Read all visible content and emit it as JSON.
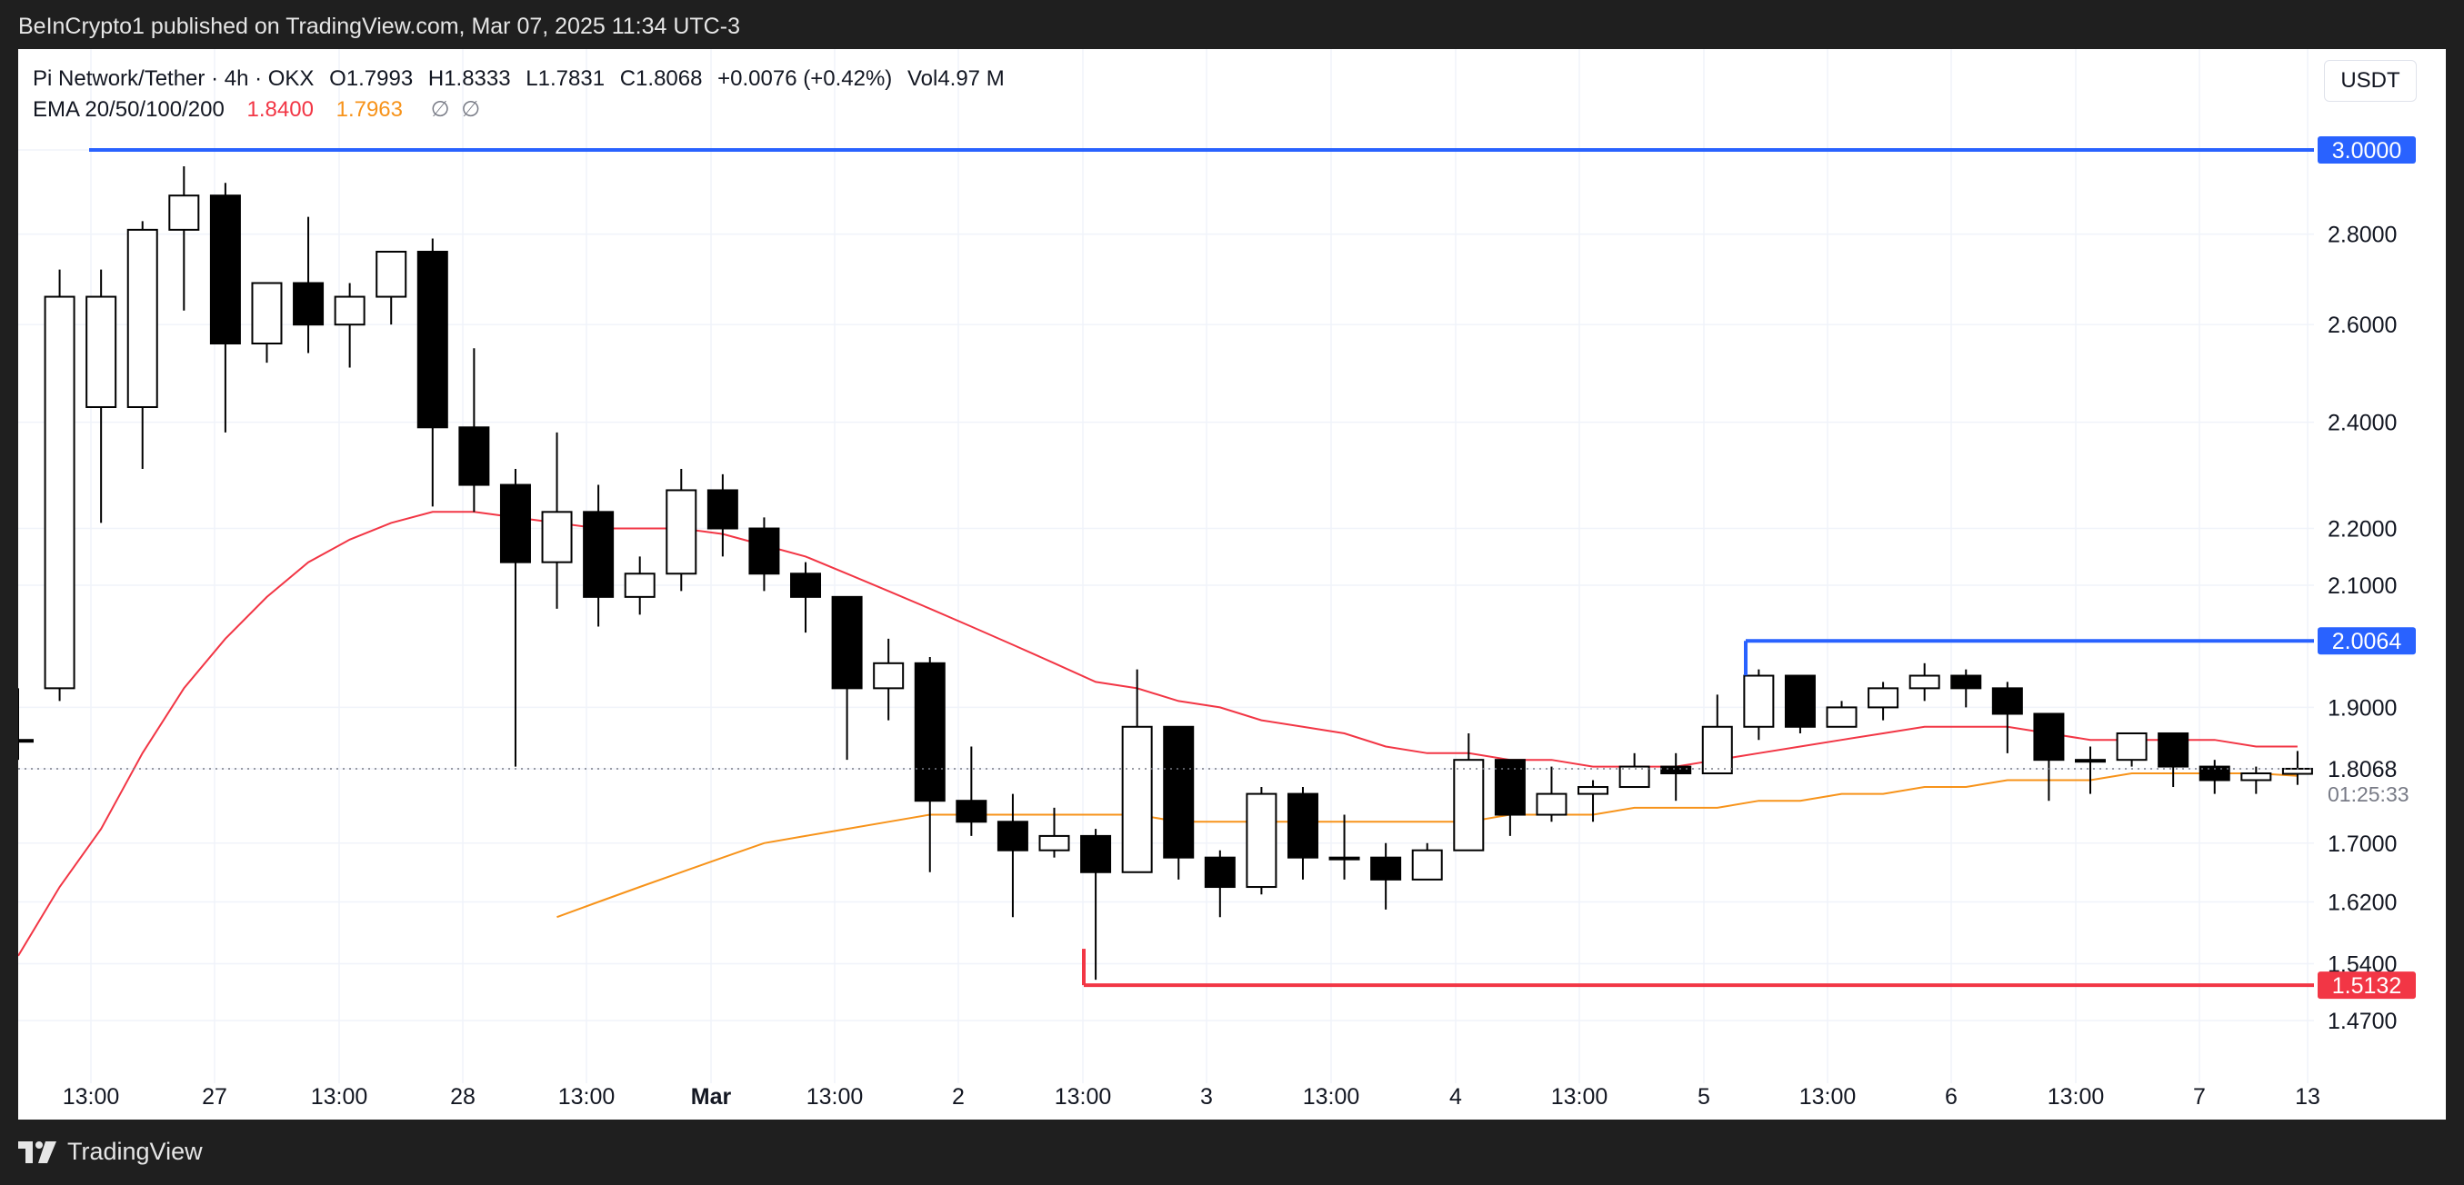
{
  "header": {
    "published": "BeInCrypto1 published on TradingView.com, Mar 07, 2025 11:34 UTC-3"
  },
  "legend": {
    "symbol": "Pi Network/Tether · 4h · OKX",
    "open": "O1.7993",
    "high": "H1.8333",
    "low": "L1.7831",
    "close": "C1.8068",
    "change": "+0.0076 (+0.42%)",
    "volume": "Vol4.97 M",
    "ema_label": "EMA 20/50/100/200",
    "ema20": "1.8400",
    "ema50": "1.7963",
    "ema_na1": "∅",
    "ema_na2": "∅"
  },
  "currency_button": "USDT",
  "footer": {
    "brand": "TradingView"
  },
  "colors": {
    "up": "#ffffff",
    "down": "#000000",
    "ema20": "#f23645",
    "ema50": "#f7931a",
    "resistance": "#2962ff",
    "support": "#f23645"
  },
  "chart_data": {
    "type": "candlestick",
    "timeframe": "4h",
    "price_scale": "log",
    "ylim": [
      1.44,
      3.06
    ],
    "grid": true,
    "x_ticks": [
      "13:00",
      "27",
      "13:00",
      "28",
      "13:00",
      "Mar",
      "13:00",
      "2",
      "13:00",
      "3",
      "13:00",
      "4",
      "13:00",
      "5",
      "13:00",
      "6",
      "13:00",
      "7",
      "13"
    ],
    "y_ticks": [
      "3.0000",
      "2.8000",
      "2.6000",
      "2.4000",
      "2.2000",
      "2.1000",
      "1.9000",
      "1.8068",
      "1.7000",
      "1.6200",
      "1.5400",
      "1.4700"
    ],
    "countdown": "01:25:33",
    "levels": [
      {
        "price": 3.0,
        "label": "3.0000",
        "kind": "resistance"
      },
      {
        "price": 2.0064,
        "label": "2.0064",
        "kind": "resistance"
      },
      {
        "price": 1.5132,
        "label": "1.5132",
        "kind": "support"
      }
    ],
    "candles": [
      [
        1.85,
        1.93,
        1.82,
        1.85
      ],
      [
        1.93,
        2.72,
        1.91,
        2.66
      ],
      [
        2.43,
        2.72,
        2.21,
        2.66
      ],
      [
        2.43,
        2.83,
        2.31,
        2.81
      ],
      [
        2.81,
        2.96,
        2.63,
        2.89
      ],
      [
        2.89,
        2.92,
        2.38,
        2.56
      ],
      [
        2.56,
        2.69,
        2.52,
        2.69
      ],
      [
        2.69,
        2.84,
        2.54,
        2.6
      ],
      [
        2.6,
        2.69,
        2.51,
        2.66
      ],
      [
        2.66,
        2.76,
        2.6,
        2.76
      ],
      [
        2.76,
        2.79,
        2.24,
        2.39
      ],
      [
        2.39,
        2.55,
        2.23,
        2.28
      ],
      [
        2.28,
        2.31,
        1.81,
        2.14
      ],
      [
        2.14,
        2.38,
        2.06,
        2.23
      ],
      [
        2.23,
        2.28,
        2.03,
        2.08
      ],
      [
        2.08,
        2.15,
        2.05,
        2.12
      ],
      [
        2.12,
        2.31,
        2.09,
        2.27
      ],
      [
        2.27,
        2.3,
        2.15,
        2.2
      ],
      [
        2.2,
        2.22,
        2.09,
        2.12
      ],
      [
        2.12,
        2.14,
        2.02,
        2.08
      ],
      [
        2.08,
        2.08,
        1.82,
        1.93
      ],
      [
        1.93,
        2.01,
        1.88,
        1.97
      ],
      [
        1.97,
        1.98,
        1.66,
        1.76
      ],
      [
        1.76,
        1.84,
        1.71,
        1.73
      ],
      [
        1.73,
        1.77,
        1.6,
        1.69
      ],
      [
        1.69,
        1.75,
        1.68,
        1.71
      ],
      [
        1.71,
        1.72,
        1.52,
        1.66
      ],
      [
        1.66,
        1.96,
        1.66,
        1.87
      ],
      [
        1.87,
        1.87,
        1.65,
        1.68
      ],
      [
        1.68,
        1.69,
        1.6,
        1.64
      ],
      [
        1.64,
        1.78,
        1.63,
        1.77
      ],
      [
        1.77,
        1.78,
        1.65,
        1.68
      ],
      [
        1.68,
        1.74,
        1.65,
        1.68
      ],
      [
        1.68,
        1.7,
        1.61,
        1.65
      ],
      [
        1.65,
        1.7,
        1.65,
        1.69
      ],
      [
        1.69,
        1.86,
        1.69,
        1.82
      ],
      [
        1.82,
        1.82,
        1.71,
        1.74
      ],
      [
        1.74,
        1.81,
        1.73,
        1.77
      ],
      [
        1.77,
        1.79,
        1.73,
        1.78
      ],
      [
        1.78,
        1.83,
        1.78,
        1.81
      ],
      [
        1.81,
        1.83,
        1.76,
        1.8
      ],
      [
        1.8,
        1.92,
        1.8,
        1.87
      ],
      [
        1.87,
        1.96,
        1.85,
        1.95
      ],
      [
        1.95,
        1.95,
        1.86,
        1.87
      ],
      [
        1.87,
        1.91,
        1.87,
        1.9
      ],
      [
        1.9,
        1.94,
        1.88,
        1.93
      ],
      [
        1.93,
        1.97,
        1.91,
        1.95
      ],
      [
        1.95,
        1.96,
        1.9,
        1.93
      ],
      [
        1.93,
        1.94,
        1.83,
        1.89
      ],
      [
        1.89,
        1.89,
        1.76,
        1.82
      ],
      [
        1.82,
        1.84,
        1.77,
        1.82
      ],
      [
        1.82,
        1.86,
        1.81,
        1.86
      ],
      [
        1.86,
        1.86,
        1.78,
        1.81
      ],
      [
        1.81,
        1.82,
        1.77,
        1.79
      ],
      [
        1.79,
        1.81,
        1.77,
        1.8
      ],
      [
        1.7993,
        1.8333,
        1.7831,
        1.8068
      ]
    ],
    "series": [
      {
        "name": "EMA 20",
        "values": [
          1.55,
          1.64,
          1.72,
          1.83,
          1.93,
          2.01,
          2.08,
          2.14,
          2.18,
          2.21,
          2.23,
          2.23,
          2.22,
          2.21,
          2.2,
          2.2,
          2.2,
          2.19,
          2.17,
          2.15,
          2.12,
          2.09,
          2.06,
          2.03,
          2.0,
          1.97,
          1.94,
          1.93,
          1.91,
          1.9,
          1.88,
          1.87,
          1.86,
          1.84,
          1.83,
          1.83,
          1.82,
          1.82,
          1.81,
          1.81,
          1.81,
          1.82,
          1.83,
          1.84,
          1.85,
          1.86,
          1.87,
          1.87,
          1.87,
          1.86,
          1.85,
          1.85,
          1.85,
          1.85,
          1.84,
          1.84
        ]
      },
      {
        "name": "EMA 50",
        "values": [
          null,
          null,
          null,
          null,
          null,
          null,
          null,
          null,
          null,
          null,
          null,
          null,
          null,
          1.6,
          1.62,
          1.64,
          1.66,
          1.68,
          1.7,
          1.71,
          1.72,
          1.73,
          1.74,
          1.74,
          1.74,
          1.74,
          1.74,
          1.74,
          1.73,
          1.73,
          1.73,
          1.73,
          1.73,
          1.73,
          1.73,
          1.73,
          1.74,
          1.74,
          1.74,
          1.75,
          1.75,
          1.75,
          1.76,
          1.76,
          1.77,
          1.77,
          1.78,
          1.78,
          1.79,
          1.79,
          1.79,
          1.8,
          1.8,
          1.8,
          1.8,
          1.7963
        ]
      }
    ]
  }
}
